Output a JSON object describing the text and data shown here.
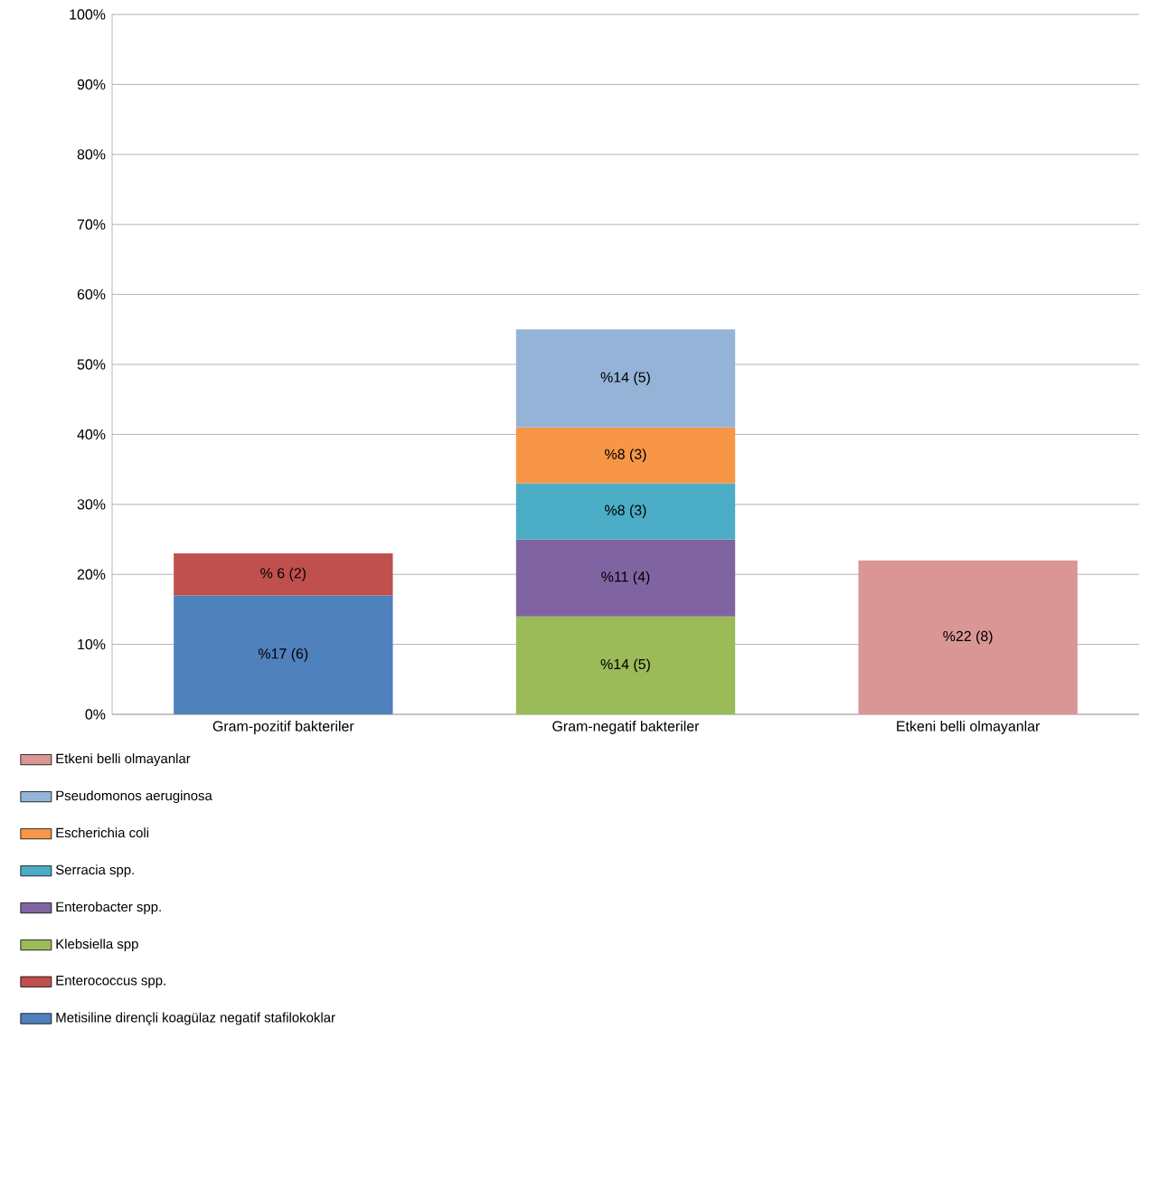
{
  "chart_data": {
    "type": "bar",
    "stacked": true,
    "categories": [
      "Gram-pozitif bakteriler",
      "Gram-negatif bakteriler",
      "Etkeni belli olmayanlar"
    ],
    "series": [
      {
        "name": "Metisiline dirençli koagülaz negatif stafilokoklar",
        "color": "#4f81bd",
        "values": [
          17,
          null,
          null
        ],
        "value_labels": [
          "%17 (6)",
          null,
          null
        ]
      },
      {
        "name": "Enterococcus spp.",
        "color": "#c0504d",
        "values": [
          6,
          null,
          null
        ],
        "value_labels": [
          "% 6 (2)",
          null,
          null
        ]
      },
      {
        "name": "Klebsiella spp",
        "color": "#9bbb59",
        "values": [
          null,
          14,
          null
        ],
        "value_labels": [
          null,
          "%14 (5)",
          null
        ]
      },
      {
        "name": "Enterobacter spp.",
        "color": "#8064a2",
        "values": [
          null,
          11,
          null
        ],
        "value_labels": [
          null,
          "%11 (4)",
          null
        ]
      },
      {
        "name": "Serracia spp.",
        "color": "#4bacc6",
        "values": [
          null,
          8,
          null
        ],
        "value_labels": [
          null,
          "%8 (3)",
          null
        ]
      },
      {
        "name": "Escherichia coli",
        "color": "#f79646",
        "values": [
          null,
          8,
          null
        ],
        "value_labels": [
          null,
          "%8 (3)",
          null
        ]
      },
      {
        "name": "Pseudomonos aeruginosa",
        "color": "#95b3d7",
        "values": [
          null,
          14,
          null
        ],
        "value_labels": [
          null,
          "%14 (5)",
          null
        ]
      },
      {
        "name": "Etkeni belli olmayanlar",
        "color": "#d99694",
        "values": [
          null,
          null,
          22
        ],
        "value_labels": [
          null,
          null,
          "%22 (8)"
        ]
      }
    ],
    "ylim": [
      0,
      100
    ],
    "yticks": [
      {
        "value": 0,
        "label": "0%"
      },
      {
        "value": 10,
        "label": "10%"
      },
      {
        "value": 20,
        "label": "20%"
      },
      {
        "value": 30,
        "label": "30%"
      },
      {
        "value": 40,
        "label": "40%"
      },
      {
        "value": 50,
        "label": "50%"
      },
      {
        "value": 60,
        "label": "60%"
      },
      {
        "value": 70,
        "label": "70%"
      },
      {
        "value": 80,
        "label": "80%"
      },
      {
        "value": 90,
        "label": "90%"
      },
      {
        "value": 100,
        "label": "100%"
      }
    ],
    "grid": "y",
    "legend": "bottom"
  }
}
